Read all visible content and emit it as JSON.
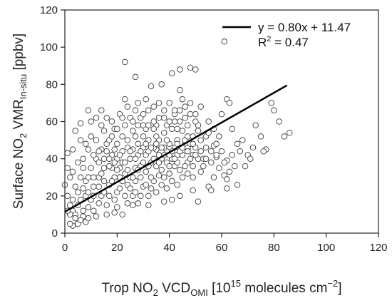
{
  "chart_data": {
    "type": "scatter",
    "title": "",
    "xlabel": {
      "main": "Trop NO",
      "sub1": "2",
      "mid": " VCD",
      "sub2": "OMI",
      "pre": " [10",
      "sup1": "15",
      "post": " molecules cm",
      "sup2": "−2",
      "end": "]"
    },
    "ylabel": {
      "main": "Surface NO",
      "sub1": "2",
      "mid": " VMR",
      "sub2": "In-situ",
      "post": " [ppbv]"
    },
    "xlim": [
      0,
      120
    ],
    "ylim": [
      0,
      120
    ],
    "x_ticks": [
      "0",
      "20",
      "40",
      "60",
      "80",
      "100",
      "120"
    ],
    "y_ticks": [
      "0",
      "20",
      "40",
      "60",
      "80",
      "100",
      "120"
    ],
    "grid": false,
    "legend_position": "top-right",
    "fit_line": {
      "slope": 0.8,
      "intercept": 11.47,
      "x_range": [
        0,
        85
      ]
    },
    "legend": {
      "line_label": "y = 0.80x + 11.47",
      "r2_prefix": "R",
      "r2_sup": "2",
      "r2_value": " = 0.47"
    },
    "series": [
      {
        "points": [
          [
            61,
            103
          ],
          [
            23,
            92
          ],
          [
            44,
            88
          ],
          [
            48,
            89
          ],
          [
            50,
            88
          ],
          [
            41,
            86
          ],
          [
            37,
            80
          ],
          [
            33,
            79
          ],
          [
            44,
            77
          ],
          [
            62,
            72
          ],
          [
            63,
            70
          ],
          [
            79,
            70
          ],
          [
            80,
            66
          ],
          [
            60,
            64
          ],
          [
            82,
            60
          ],
          [
            73,
            58
          ],
          [
            86,
            54
          ],
          [
            84,
            52
          ],
          [
            75,
            52
          ],
          [
            77,
            45
          ],
          [
            76,
            44
          ],
          [
            72,
            46
          ],
          [
            70,
            42
          ],
          [
            69,
            36
          ],
          [
            62,
            39
          ],
          [
            65,
            36
          ],
          [
            61,
            31
          ],
          [
            62,
            29
          ],
          [
            66,
            26
          ],
          [
            55,
            25
          ],
          [
            56,
            23
          ],
          [
            62,
            24
          ],
          [
            49,
            23
          ],
          [
            51,
            17
          ],
          [
            41,
            18
          ],
          [
            44,
            20
          ],
          [
            38,
            17
          ],
          [
            26,
            15
          ],
          [
            19,
            11
          ],
          [
            12,
            9
          ],
          [
            7,
            9
          ],
          [
            5,
            5
          ],
          [
            3,
            4
          ],
          [
            2,
            5
          ],
          [
            8,
            6
          ],
          [
            1,
            43
          ],
          [
            0,
            26
          ],
          [
            3,
            45
          ],
          [
            4,
            55
          ],
          [
            10,
            60
          ],
          [
            6,
            59
          ],
          [
            19,
            56
          ],
          [
            14,
            66
          ],
          [
            9,
            66
          ],
          [
            23,
            72
          ],
          [
            35,
            58
          ],
          [
            29,
            62
          ],
          [
            46,
            48
          ],
          [
            39,
            44
          ],
          [
            47,
            45
          ],
          [
            44,
            60
          ],
          [
            50,
            64
          ],
          [
            13,
            30
          ],
          [
            36,
            31
          ],
          [
            36,
            70
          ],
          [
            27,
            84
          ],
          [
            32,
            66
          ],
          [
            28,
            48
          ],
          [
            40,
            70
          ],
          [
            42,
            64
          ],
          [
            45,
            72
          ],
          [
            51,
            55
          ],
          [
            54,
            46
          ],
          [
            57,
            47
          ],
          [
            58,
            41
          ],
          [
            53,
            36
          ],
          [
            31,
            72
          ],
          [
            16,
            48
          ],
          [
            22,
            38
          ],
          [
            18,
            35
          ],
          [
            21,
            30
          ],
          [
            25,
            40
          ],
          [
            27,
            35
          ],
          [
            29,
            30
          ],
          [
            31,
            42
          ],
          [
            33,
            38
          ],
          [
            35,
            45
          ],
          [
            37,
            40
          ],
          [
            12,
            40
          ],
          [
            9,
            45
          ],
          [
            7,
            35
          ],
          [
            11,
            25
          ],
          [
            14,
            20
          ],
          [
            16,
            15
          ],
          [
            20,
            22
          ],
          [
            24,
            26
          ],
          [
            26,
            20
          ],
          [
            30,
            25
          ],
          [
            32,
            20
          ],
          [
            34,
            28
          ],
          [
            38,
            30
          ],
          [
            40,
            32
          ],
          [
            42,
            36
          ],
          [
            43,
            42
          ],
          [
            47,
            38
          ],
          [
            49,
            30
          ],
          [
            52,
            33
          ],
          [
            15,
            55
          ],
          [
            17,
            50
          ],
          [
            20,
            48
          ],
          [
            22,
            52
          ],
          [
            24,
            46
          ],
          [
            26,
            55
          ],
          [
            28,
            58
          ],
          [
            30,
            52
          ],
          [
            32,
            50
          ],
          [
            34,
            56
          ],
          [
            36,
            50
          ],
          [
            38,
            54
          ],
          [
            40,
            48
          ],
          [
            41,
            56
          ],
          [
            43,
            50
          ],
          [
            45,
            55
          ],
          [
            47,
            58
          ],
          [
            49,
            52
          ],
          [
            5,
            38
          ],
          [
            6,
            30
          ],
          [
            8,
            28
          ],
          [
            10,
            35
          ],
          [
            3,
            33
          ],
          [
            4,
            25
          ],
          [
            6,
            18
          ],
          [
            8,
            20
          ],
          [
            10,
            18
          ],
          [
            2,
            15
          ],
          [
            3,
            12
          ],
          [
            5,
            15
          ],
          [
            4,
            10
          ],
          [
            7,
            12
          ],
          [
            9,
            14
          ],
          [
            11,
            12
          ],
          [
            13,
            16
          ],
          [
            15,
            22
          ],
          [
            17,
            26
          ],
          [
            19,
            30
          ],
          [
            21,
            35
          ],
          [
            23,
            32
          ],
          [
            25,
            30
          ],
          [
            27,
            28
          ],
          [
            29,
            36
          ],
          [
            31,
            33
          ],
          [
            33,
            30
          ],
          [
            35,
            36
          ],
          [
            37,
            34
          ],
          [
            39,
            38
          ],
          [
            41,
            40
          ],
          [
            43,
            38
          ],
          [
            45,
            42
          ],
          [
            47,
            46
          ],
          [
            49,
            42
          ],
          [
            1,
            20
          ],
          [
            2,
            30
          ],
          [
            1,
            35
          ],
          [
            12,
            50
          ],
          [
            14,
            45
          ],
          [
            18,
            42
          ],
          [
            20,
            40
          ],
          [
            22,
            44
          ],
          [
            24,
            50
          ],
          [
            26,
            45
          ],
          [
            28,
            42
          ],
          [
            30,
            46
          ],
          [
            32,
            44
          ],
          [
            34,
            46
          ],
          [
            36,
            42
          ],
          [
            38,
            46
          ],
          [
            40,
            42
          ],
          [
            42,
            46
          ],
          [
            44,
            44
          ],
          [
            46,
            50
          ],
          [
            48,
            48
          ],
          [
            50,
            46
          ],
          [
            52,
            50
          ],
          [
            54,
            52
          ],
          [
            56,
            44
          ],
          [
            58,
            48
          ],
          [
            55,
            60
          ],
          [
            53,
            40
          ],
          [
            57,
            30
          ],
          [
            59,
            35
          ],
          [
            63,
            33
          ],
          [
            67,
            44
          ],
          [
            71,
            40
          ],
          [
            68,
            50
          ],
          [
            64,
            56
          ],
          [
            66,
            48
          ],
          [
            12,
            62
          ],
          [
            16,
            62
          ],
          [
            18,
            60
          ],
          [
            21,
            64
          ],
          [
            25,
            62
          ],
          [
            27,
            66
          ],
          [
            30,
            64
          ],
          [
            34,
            68
          ],
          [
            38,
            62
          ],
          [
            42,
            66
          ],
          [
            46,
            68
          ],
          [
            48,
            70
          ],
          [
            52,
            68
          ],
          [
            10,
            52
          ],
          [
            8,
            48
          ],
          [
            6,
            50
          ],
          [
            11,
            42
          ],
          [
            13,
            38
          ],
          [
            15,
            35
          ],
          [
            17,
            40
          ],
          [
            19,
            45
          ],
          [
            7,
            40
          ],
          [
            9,
            30
          ],
          [
            11,
            30
          ],
          [
            13,
            25
          ],
          [
            15,
            28
          ],
          [
            17,
            20
          ],
          [
            19,
            18
          ],
          [
            21,
            24
          ],
          [
            23,
            20
          ],
          [
            25,
            24
          ],
          [
            27,
            22
          ],
          [
            29,
            20
          ],
          [
            31,
            26
          ],
          [
            33,
            24
          ],
          [
            35,
            22
          ],
          [
            37,
            26
          ],
          [
            39,
            24
          ],
          [
            41,
            28
          ],
          [
            43,
            26
          ],
          [
            45,
            30
          ],
          [
            47,
            32
          ],
          [
            49,
            36
          ],
          [
            51,
            40
          ],
          [
            16,
            10
          ],
          [
            20,
            14
          ],
          [
            24,
            16
          ],
          [
            28,
            16
          ],
          [
            32,
            15
          ],
          [
            22,
            10
          ],
          [
            9,
            8
          ],
          [
            6,
            7
          ],
          [
            4,
            8
          ],
          [
            2,
            10
          ],
          [
            1,
            12
          ],
          [
            3,
            18
          ],
          [
            5,
            22
          ],
          [
            7,
            24
          ],
          [
            9,
            22
          ],
          [
            11,
            20
          ],
          [
            14,
            32
          ],
          [
            18,
            28
          ],
          [
            20,
            34
          ],
          [
            22,
            28
          ],
          [
            24,
            34
          ],
          [
            26,
            30
          ],
          [
            28,
            34
          ],
          [
            30,
            38
          ],
          [
            32,
            36
          ],
          [
            34,
            40
          ],
          [
            36,
            38
          ],
          [
            38,
            42
          ],
          [
            40,
            36
          ],
          [
            42,
            40
          ],
          [
            44,
            34
          ],
          [
            46,
            36
          ],
          [
            48,
            40
          ],
          [
            50,
            42
          ],
          [
            52,
            44
          ],
          [
            54,
            40
          ],
          [
            56,
            38
          ],
          [
            58,
            42
          ],
          [
            60,
            44
          ],
          [
            61,
            38
          ],
          [
            64,
            42
          ],
          [
            23,
            58
          ],
          [
            27,
            52
          ],
          [
            31,
            56
          ],
          [
            35,
            52
          ],
          [
            39,
            58
          ],
          [
            43,
            56
          ],
          [
            47,
            52
          ],
          [
            51,
            58
          ],
          [
            55,
            54
          ],
          [
            57,
            56
          ],
          [
            59,
            52
          ],
          [
            14,
            58
          ],
          [
            16,
            44
          ],
          [
            18,
            52
          ],
          [
            20,
            56
          ],
          [
            22,
            62
          ],
          [
            26,
            60
          ],
          [
            30,
            58
          ],
          [
            34,
            60
          ],
          [
            38,
            66
          ],
          [
            42,
            60
          ],
          [
            46,
            62
          ],
          [
            50,
            60
          ],
          [
            24,
            68
          ],
          [
            28,
            70
          ],
          [
            32,
            58
          ],
          [
            36,
            62
          ],
          [
            40,
            60
          ],
          [
            44,
            66
          ],
          [
            48,
            64
          ],
          [
            13,
            44
          ],
          [
            15,
            40
          ],
          [
            17,
            36
          ],
          [
            19,
            38
          ],
          [
            21,
            42
          ],
          [
            23,
            38
          ],
          [
            25,
            44
          ],
          [
            27,
            40
          ],
          [
            29,
            44
          ],
          [
            31,
            48
          ],
          [
            33,
            46
          ],
          [
            35,
            48
          ],
          [
            37,
            46
          ],
          [
            39,
            50
          ],
          [
            41,
            44
          ],
          [
            43,
            48
          ],
          [
            45,
            46
          ],
          [
            47,
            44
          ],
          [
            49,
            48
          ]
        ]
      }
    ]
  }
}
